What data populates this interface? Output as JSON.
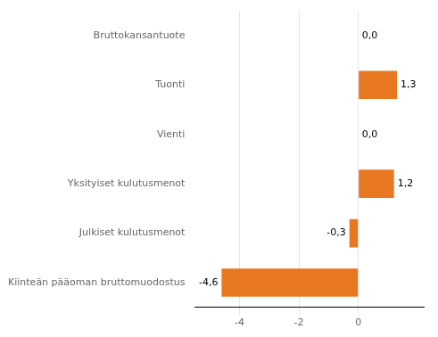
{
  "chart_data": {
    "type": "bar",
    "orientation": "horizontal",
    "categories": [
      "Kiinteän pääoman bruttomuodostus",
      "Julkiset kulutusmenot",
      "Yksityiset kulutusmenot",
      "Vienti",
      "Tuonti",
      "Bruttokansantuote"
    ],
    "values": [
      -4.6,
      -0.3,
      1.2,
      0.0,
      1.3,
      0.0
    ],
    "value_labels": [
      "-4,6",
      "-0,3",
      "1,2",
      "0,0",
      "1,3",
      "0,0"
    ],
    "data_labels": true,
    "color": "#E87722",
    "xlim": [
      -5.5,
      2.2
    ],
    "xticks": [
      -4,
      -2,
      0
    ],
    "grid": true
  }
}
